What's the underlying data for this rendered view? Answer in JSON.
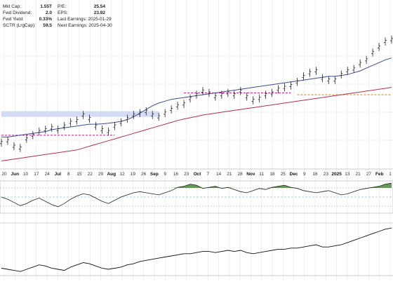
{
  "stats_left": [
    {
      "label": "Mkt Cap:",
      "value": "1.55T"
    },
    {
      "label": "Fwd Dividend:",
      "value": "2.0"
    },
    {
      "label": "Fwd Yield:",
      "value": "0.33%"
    },
    {
      "label": "SCTR (LrgCap):",
      "value": "59.5"
    }
  ],
  "stats_right": [
    {
      "label": "P/E:",
      "value": "25.54"
    },
    {
      "label": "EPS:",
      "value": "23.92"
    },
    {
      "label": "Last Earnings: 2025-01-29",
      "value": ""
    },
    {
      "label": "Next Earnings: 2025-04-30",
      "value": ""
    }
  ],
  "colors": {
    "price": "#222222",
    "ma_blue": "#3a4d8f",
    "ma_red": "#b03050",
    "resistance_magenta": "#d02aa0",
    "support_orange": "#e0a020",
    "zone_blue": "#c9d3f2",
    "osc_fill": "#4a8a3a",
    "grid": "#e6e6e6"
  },
  "chart_data": {
    "type": "line",
    "title": "",
    "xlabel": "",
    "ylabel": "",
    "x_ticks": [
      {
        "label": "20",
        "bold": false
      },
      {
        "label": "Jun",
        "bold": true
      },
      {
        "label": "10",
        "bold": false
      },
      {
        "label": "17",
        "bold": false
      },
      {
        "label": "24",
        "bold": false
      },
      {
        "label": "Jul",
        "bold": true
      },
      {
        "label": "8",
        "bold": false
      },
      {
        "label": "15",
        "bold": false
      },
      {
        "label": "22",
        "bold": false
      },
      {
        "label": "29",
        "bold": false
      },
      {
        "label": "Aug",
        "bold": true
      },
      {
        "label": "12",
        "bold": false
      },
      {
        "label": "19",
        "bold": false
      },
      {
        "label": "26",
        "bold": false
      },
      {
        "label": "Sep",
        "bold": true
      },
      {
        "label": "9",
        "bold": false
      },
      {
        "label": "16",
        "bold": false
      },
      {
        "label": "23",
        "bold": false
      },
      {
        "label": "Oct",
        "bold": true
      },
      {
        "label": "7",
        "bold": false
      },
      {
        "label": "14",
        "bold": false
      },
      {
        "label": "21",
        "bold": false
      },
      {
        "label": "28",
        "bold": false
      },
      {
        "label": "Nov",
        "bold": true
      },
      {
        "label": "11",
        "bold": false
      },
      {
        "label": "18",
        "bold": false
      },
      {
        "label": "25",
        "bold": false
      },
      {
        "label": "Dec",
        "bold": true
      },
      {
        "label": "9",
        "bold": false
      },
      {
        "label": "16",
        "bold": false
      },
      {
        "label": "23",
        "bold": false
      },
      {
        "label": "2025",
        "bold": true
      },
      {
        "label": "13",
        "bold": false
      },
      {
        "label": "21",
        "bold": false
      },
      {
        "label": "27",
        "bold": false
      },
      {
        "label": "Feb",
        "bold": true
      },
      {
        "label": "1",
        "bold": false
      }
    ],
    "price_series": [
      {
        "name": "price",
        "values": [
          40,
          41,
          38,
          37,
          42,
          44,
          46,
          47,
          48,
          47,
          49,
          51,
          52,
          55,
          53,
          49,
          47,
          46,
          49,
          51,
          53,
          55,
          56,
          57,
          55,
          54,
          56,
          58,
          60,
          61,
          64,
          66,
          68,
          67,
          65,
          66,
          67,
          66,
          68,
          65,
          63,
          64,
          66,
          67,
          69,
          70,
          71,
          73,
          76,
          78,
          79,
          75,
          74,
          74,
          77,
          79,
          80,
          83,
          85,
          89,
          92,
          95,
          96
        ]
      },
      {
        "name": "ma_blue",
        "values": [
          43,
          43,
          43.5,
          44,
          44.5,
          45,
          45.5,
          46,
          47,
          47.5,
          48,
          48.5,
          49,
          49.5,
          50,
          50,
          50.2,
          50.5,
          51,
          51.5,
          52.5,
          54,
          56,
          58,
          60,
          61.5,
          62.5,
          63.5,
          64,
          64.5,
          65,
          65.5,
          66,
          66.5,
          67,
          67.5,
          68,
          68.5,
          69,
          69.5,
          70,
          70.5,
          71,
          71.5,
          72,
          72.5,
          73,
          73.5,
          74,
          74.5,
          75,
          75.5,
          76,
          76,
          76.5,
          77,
          78,
          79,
          80.5,
          82,
          83.5,
          85,
          86
        ]
      },
      {
        "name": "ma_red",
        "values": [
          30,
          30.5,
          31,
          31.5,
          32,
          32.5,
          33,
          33.5,
          34,
          34.5,
          35,
          35.5,
          36,
          37,
          38,
          39,
          40,
          41,
          42,
          43,
          44,
          45,
          46,
          47,
          48,
          49,
          50,
          51,
          52,
          52.8,
          53.5,
          54.2,
          55,
          55.5,
          56,
          56.5,
          57,
          57.5,
          58,
          58.5,
          59,
          59.5,
          60,
          60.5,
          61,
          61.5,
          62,
          62.5,
          63,
          63.5,
          64,
          64.5,
          65,
          65.5,
          66,
          66.5,
          67,
          67.5,
          68,
          68.5,
          69,
          69.5,
          70
        ]
      }
    ],
    "lines": [
      {
        "name": "resistance-line",
        "y": 67,
        "x_start_index": 29,
        "x_end_index": 46
      },
      {
        "name": "support-line-left",
        "y": 44,
        "x_start_index": 0,
        "x_end_index": 18
      },
      {
        "name": "support-line-orange",
        "y": 66,
        "x_start_index": 47,
        "x_end_index": 62
      }
    ],
    "zone": {
      "y_low": 54,
      "y_high": 55.5,
      "x_start_index": 0,
      "x_end_index": 25
    },
    "oscillator": [
      0,
      -2,
      -5,
      -8,
      -6,
      -3,
      -1,
      -4,
      -7,
      -9,
      -6,
      -2,
      1,
      3,
      2,
      -1,
      -4,
      -6,
      -3,
      0,
      2,
      4,
      5,
      4,
      3,
      2,
      4,
      6,
      9,
      10,
      12,
      11,
      8,
      9,
      10,
      8,
      9,
      7,
      5,
      4,
      6,
      8,
      7,
      9,
      10,
      11,
      9,
      8,
      6,
      5,
      4,
      5,
      6,
      4,
      2,
      3,
      5,
      7,
      8,
      9,
      10,
      12,
      13
    ],
    "breadth": [
      45,
      44,
      43,
      42,
      44,
      46,
      48,
      47,
      45,
      44,
      43,
      46,
      48,
      50,
      49,
      47,
      45,
      44,
      45,
      46,
      48,
      49,
      51,
      52,
      53,
      54,
      55,
      56,
      57,
      58,
      58,
      59,
      60,
      60,
      59,
      60,
      61,
      60,
      61,
      59,
      58,
      59,
      60,
      61,
      62,
      62,
      63,
      63,
      64,
      65,
      66,
      64,
      64,
      65,
      66,
      68,
      70,
      72,
      74,
      76,
      78,
      80,
      81
    ]
  }
}
